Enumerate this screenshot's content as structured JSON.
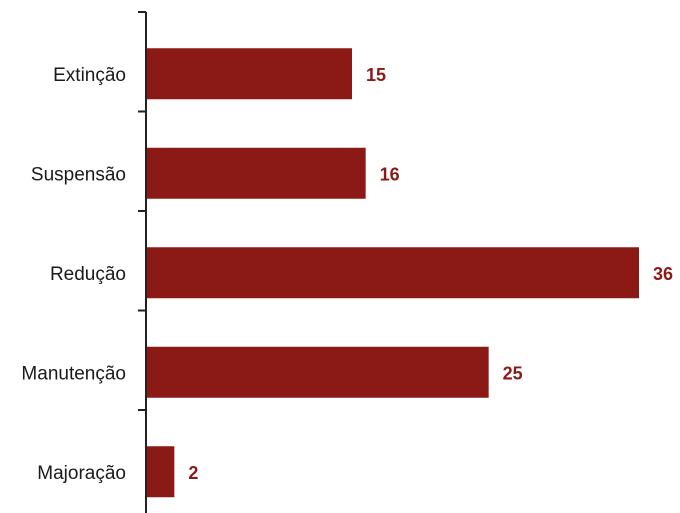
{
  "chart_data": {
    "type": "bar",
    "orientation": "horizontal",
    "categories": [
      "Extinção",
      "Suspensão",
      "Redução",
      "Manutenção",
      "Majoração"
    ],
    "values": [
      15,
      16,
      36,
      25,
      2
    ],
    "title": "",
    "xlabel": "",
    "ylabel": "",
    "xlim": [
      0,
      36
    ],
    "grid": false,
    "legend": "none",
    "data_labels": true,
    "bar_color": "#8b1a17",
    "label_color": "#8b1a17"
  }
}
